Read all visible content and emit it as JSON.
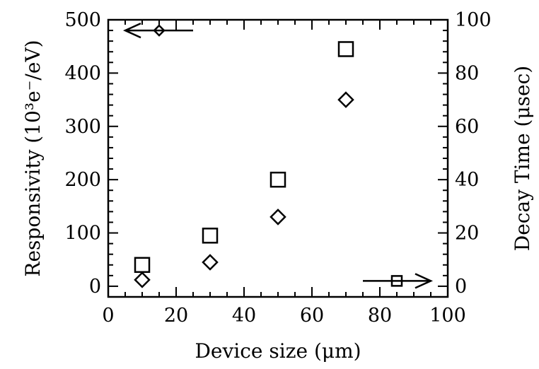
{
  "chart_data": {
    "type": "scatter",
    "xlabel": "Device size (μm)",
    "ylabel_left": "Responsivity (10³e⁻/eV)",
    "ylabel_right": "Decay Time (μsec)",
    "xlim": [
      0,
      100
    ],
    "ylim_left": [
      -20,
      500
    ],
    "ylim_right": [
      -4,
      100
    ],
    "x_ticks": [
      "0",
      "20",
      "40",
      "60",
      "80",
      "100"
    ],
    "y_left_ticks": [
      "0",
      "100",
      "200",
      "300",
      "400",
      "500"
    ],
    "y_right_ticks": [
      "0",
      "20",
      "40",
      "60",
      "80",
      "100"
    ],
    "grid": false,
    "series": [
      {
        "marker": "diamond",
        "axis": "left",
        "x": [
          10,
          30,
          50,
          70
        ],
        "y": [
          12,
          45,
          130,
          350
        ]
      },
      {
        "marker": "square",
        "axis": "right",
        "x": [
          10,
          30,
          50,
          70
        ],
        "y": [
          8,
          19,
          40,
          89
        ]
      }
    ],
    "annotations": [
      {
        "type": "arrow-left",
        "marker": "diamond",
        "x_from": 25,
        "x_to": 5,
        "y": 480,
        "axis": "left"
      },
      {
        "type": "arrow-right",
        "marker": "square",
        "x_from": 75,
        "x_to": 95,
        "y": 2,
        "axis": "right"
      }
    ]
  }
}
